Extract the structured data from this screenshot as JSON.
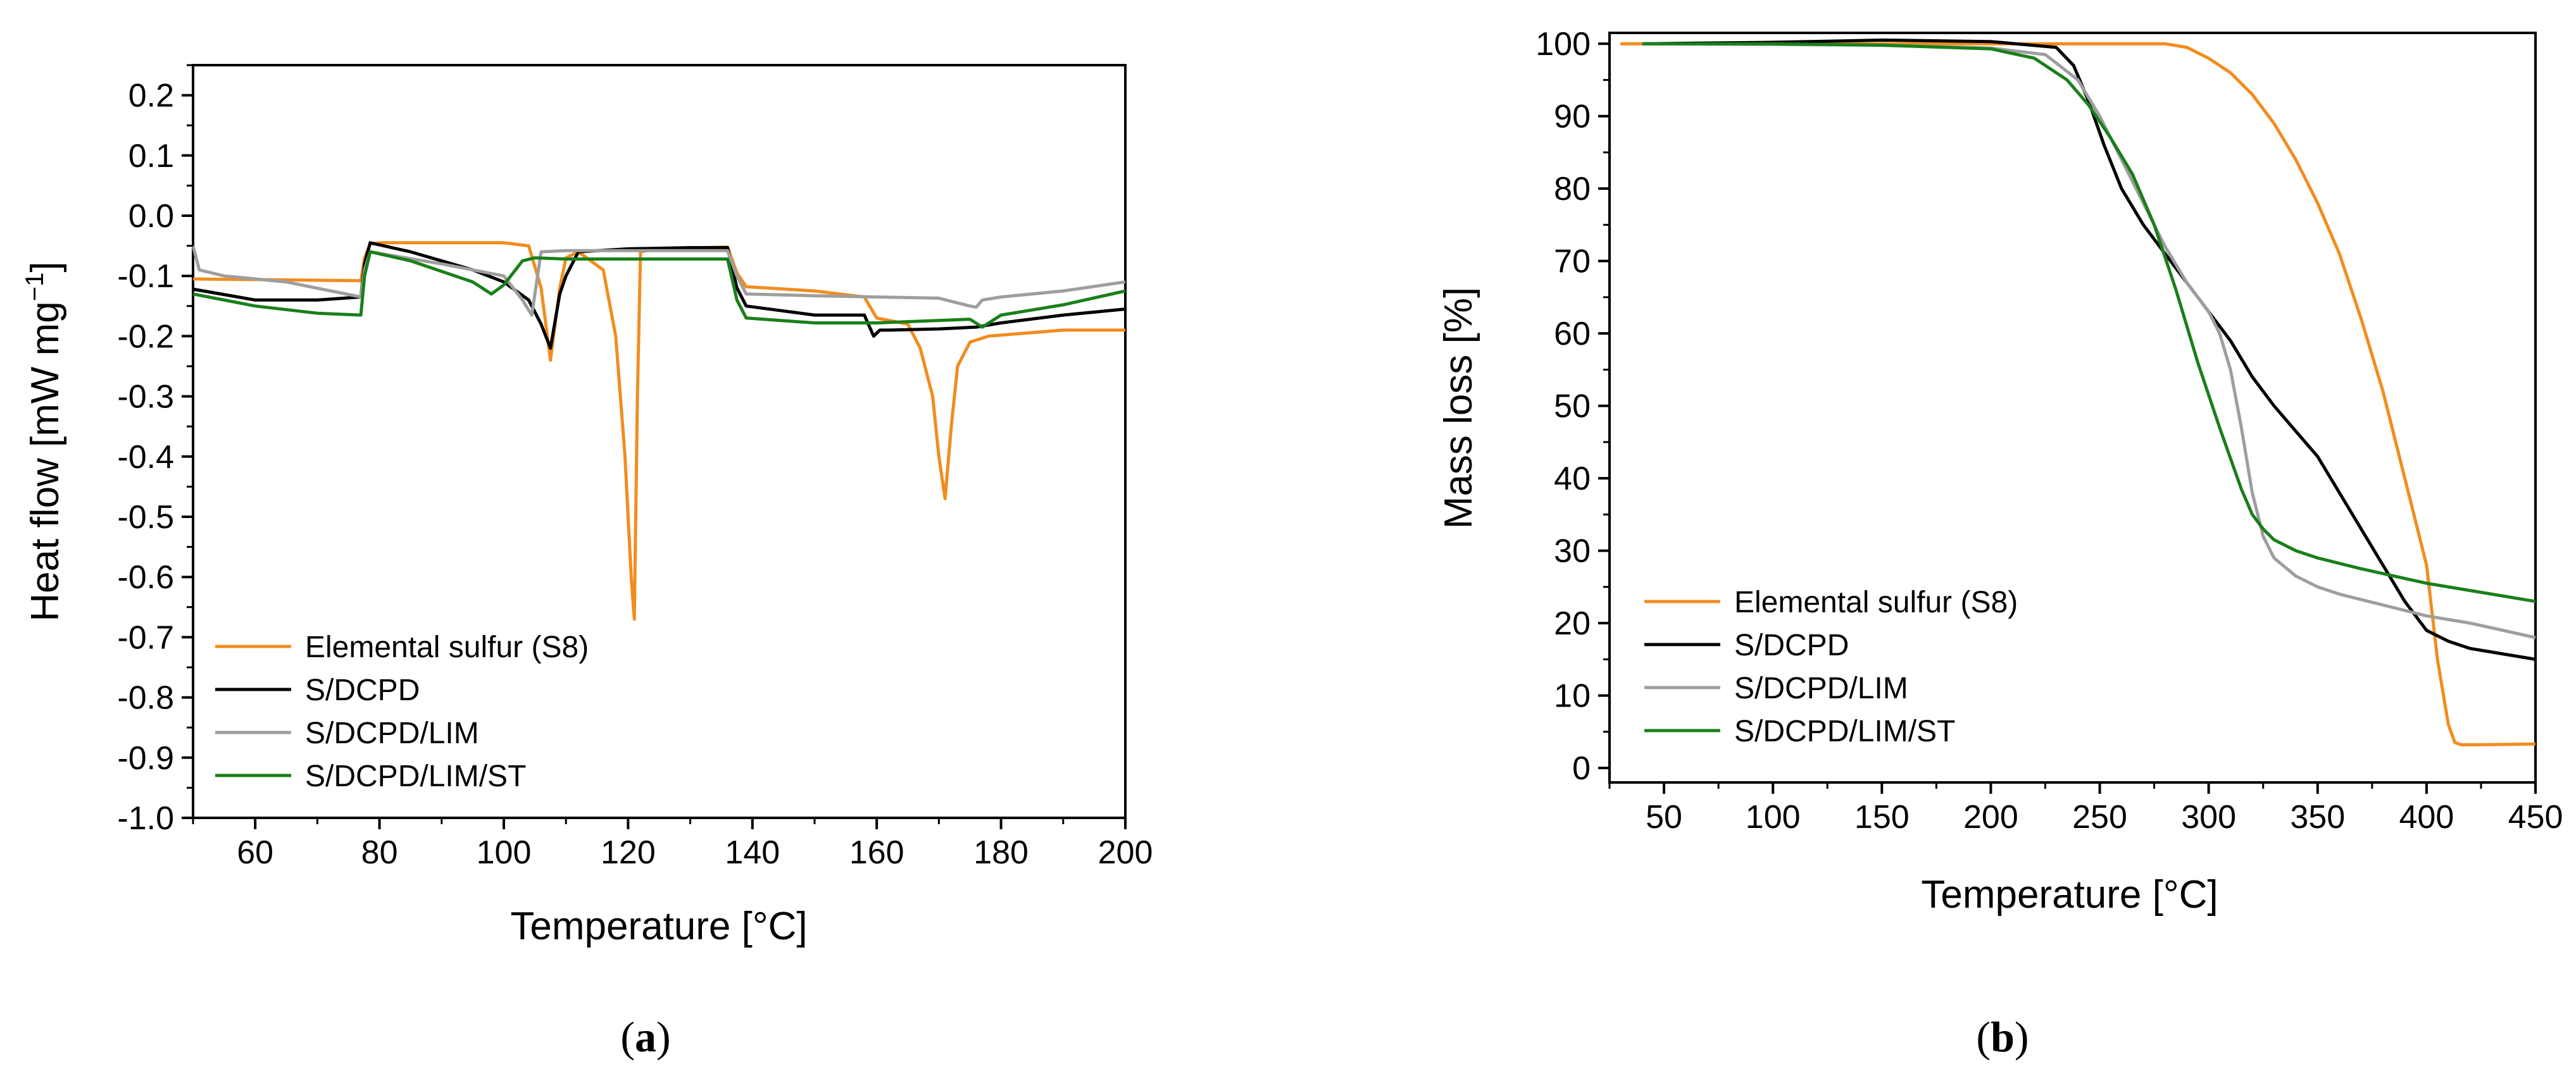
{
  "chart_data": [
    {
      "type": "line",
      "panel_label": "(a)",
      "xlabel": "Temperature [°C]",
      "ylabel_main": "Heat flow [mW mg",
      "ylabel_sup": "−1",
      "ylabel_end": "]",
      "xlim": [
        50,
        200
      ],
      "ylim": [
        -1.0,
        0.25
      ],
      "xticks": [
        "60",
        "80",
        "100",
        "120",
        "140",
        "160",
        "180",
        "200"
      ],
      "yticks": [
        "0.2",
        "0.1",
        "0.0",
        "-0.1",
        "-0.2",
        "-0.3",
        "-0.4",
        "-0.5",
        "-0.6",
        "-0.7",
        "-0.8",
        "-0.9",
        "-1.0"
      ],
      "legend_position": "bottom-left",
      "series": [
        {
          "name": "Elemental sulfur (S8)",
          "color": "#f28c1e",
          "x": [
            50,
            77,
            77.6,
            78.5,
            80,
            100,
            104,
            106,
            107.5,
            109,
            110,
            112,
            116,
            118,
            119.5,
            120.5,
            121,
            121.5,
            122,
            125,
            136,
            137.5,
            139,
            150,
            158,
            160,
            165,
            167,
            169,
            170,
            171,
            172,
            173,
            175,
            178,
            190,
            200
          ],
          "y": [
            -0.105,
            -0.108,
            -0.07,
            -0.047,
            -0.045,
            -0.045,
            -0.05,
            -0.12,
            -0.24,
            -0.12,
            -0.07,
            -0.06,
            -0.09,
            -0.2,
            -0.4,
            -0.6,
            -0.67,
            -0.3,
            -0.06,
            -0.055,
            -0.052,
            -0.095,
            -0.118,
            -0.125,
            -0.135,
            -0.17,
            -0.18,
            -0.22,
            -0.3,
            -0.4,
            -0.47,
            -0.35,
            -0.25,
            -0.21,
            -0.2,
            -0.19,
            -0.19
          ]
        },
        {
          "name": "S/DCPD",
          "color": "#000000",
          "x": [
            50,
            60,
            70,
            77,
            77.6,
            78.5,
            85,
            95,
            100,
            104,
            106,
            107.5,
            109,
            110,
            112,
            120,
            130,
            136,
            137.5,
            139,
            150,
            158,
            159.5,
            160.5,
            162,
            170,
            176,
            180,
            190,
            200
          ],
          "y": [
            -0.122,
            -0.14,
            -0.14,
            -0.135,
            -0.08,
            -0.045,
            -0.06,
            -0.09,
            -0.11,
            -0.14,
            -0.18,
            -0.22,
            -0.13,
            -0.1,
            -0.06,
            -0.055,
            -0.053,
            -0.053,
            -0.12,
            -0.15,
            -0.165,
            -0.165,
            -0.2,
            -0.19,
            -0.19,
            -0.188,
            -0.185,
            -0.178,
            -0.165,
            -0.155
          ]
        },
        {
          "name": "S/DCPD/LIM",
          "color": "#9e9e9e",
          "x": [
            50,
            51,
            55,
            65,
            77,
            77.6,
            78.5,
            90,
            100,
            103,
            104.5,
            106,
            110,
            120,
            136,
            137.5,
            139,
            150,
            170,
            175,
            176,
            177,
            180,
            190,
            200
          ],
          "y": [
            -0.05,
            -0.09,
            -0.1,
            -0.11,
            -0.135,
            -0.09,
            -0.06,
            -0.08,
            -0.1,
            -0.14,
            -0.165,
            -0.06,
            -0.058,
            -0.058,
            -0.058,
            -0.1,
            -0.13,
            -0.133,
            -0.137,
            -0.15,
            -0.152,
            -0.14,
            -0.135,
            -0.125,
            -0.11
          ]
        },
        {
          "name": "S/DCPD/LIM/ST",
          "color": "#1a7f1a",
          "x": [
            50,
            60,
            70,
            77,
            77.6,
            78.5,
            85,
            95,
            98,
            100,
            103,
            105,
            110,
            120,
            136,
            137.5,
            139,
            150,
            160,
            175,
            177,
            180,
            190,
            200
          ],
          "y": [
            -0.13,
            -0.15,
            -0.162,
            -0.165,
            -0.1,
            -0.06,
            -0.075,
            -0.11,
            -0.13,
            -0.115,
            -0.075,
            -0.07,
            -0.072,
            -0.072,
            -0.072,
            -0.14,
            -0.17,
            -0.178,
            -0.178,
            -0.172,
            -0.185,
            -0.165,
            -0.148,
            -0.125
          ]
        }
      ]
    },
    {
      "type": "line",
      "panel_label": "(b)",
      "xlabel": "Temperature [°C]",
      "ylabel": "Mass loss [%]",
      "xlim": [
        25,
        450
      ],
      "ylim": [
        -2,
        101.5
      ],
      "xticks": [
        "50",
        "100",
        "150",
        "200",
        "250",
        "300",
        "350",
        "400",
        "450"
      ],
      "yticks": [
        "100",
        "90",
        "80",
        "70",
        "60",
        "50",
        "40",
        "30",
        "20",
        "10",
        "0"
      ],
      "legend_position": "bottom-left",
      "series": [
        {
          "name": "Elemental sulfur (S8)",
          "color": "#f28c1e",
          "x": [
            30,
            100,
            200,
            280,
            290,
            300,
            310,
            320,
            330,
            340,
            350,
            360,
            370,
            380,
            390,
            400,
            405,
            410,
            413,
            416,
            420,
            450
          ],
          "y": [
            100,
            100,
            100,
            100,
            99.5,
            98,
            96,
            93,
            89,
            84,
            78,
            71,
            62,
            52,
            40,
            28,
            15,
            6,
            3.5,
            3.2,
            3.2,
            3.3
          ]
        },
        {
          "name": "S/DCPD",
          "color": "#000000",
          "x": [
            40,
            100,
            150,
            200,
            230,
            238,
            245,
            252,
            260,
            270,
            280,
            290,
            300,
            310,
            320,
            330,
            340,
            350,
            360,
            370,
            380,
            390,
            400,
            410,
            420,
            450
          ],
          "y": [
            100,
            100.2,
            100.5,
            100.3,
            99.5,
            97,
            92,
            86,
            80,
            75,
            71,
            67,
            63,
            59,
            54,
            50,
            46.5,
            43,
            38,
            33,
            28,
            23,
            19,
            17.5,
            16.5,
            15
          ]
        },
        {
          "name": "S/DCPD/LIM",
          "color": "#9e9e9e",
          "x": [
            40,
            100,
            150,
            200,
            225,
            240,
            250,
            260,
            270,
            280,
            290,
            300,
            305,
            310,
            315,
            320,
            325,
            330,
            340,
            350,
            360,
            380,
            400,
            420,
            450
          ],
          "y": [
            100,
            99.9,
            99.8,
            99.4,
            98.5,
            95,
            90,
            84,
            78,
            72,
            67,
            63,
            60,
            55,
            47,
            38,
            32,
            29,
            26.5,
            25,
            24,
            22.5,
            21,
            20,
            18
          ]
        },
        {
          "name": "S/DCPD/LIM/ST",
          "color": "#1a7f1a",
          "x": [
            40,
            100,
            150,
            200,
            220,
            235,
            245,
            255,
            265,
            275,
            285,
            295,
            305,
            315,
            320,
            325,
            330,
            340,
            350,
            370,
            400,
            450
          ],
          "y": [
            100,
            100,
            99.8,
            99.3,
            98,
            95,
            91.5,
            87,
            82,
            75,
            66,
            56,
            47,
            38.5,
            35,
            33,
            31.5,
            30,
            29,
            27.5,
            25.5,
            23
          ]
        }
      ]
    }
  ]
}
